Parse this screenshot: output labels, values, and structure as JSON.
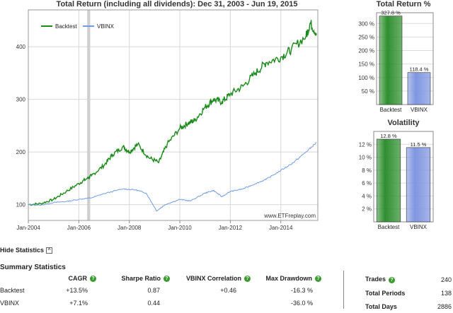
{
  "main_chart": {
    "title": "Total Return (including all dividends): Dec 31, 2003 - Jun 19, 2015",
    "watermark": "www.ETFreplay.com",
    "legend": [
      "Backtest",
      "VBINX"
    ]
  },
  "chart_data": [
    {
      "type": "line",
      "title": "Total Return (including all dividends): Dec 31, 2003 - Jun 19, 2015",
      "xlabel": "",
      "ylabel": "",
      "x_ticks": [
        "Jan-2004",
        "Jan-2006",
        "Jan-2008",
        "Jan-2010",
        "Jan-2012",
        "Jan-2014"
      ],
      "y_ticks": [
        100,
        200,
        300,
        400
      ],
      "xlim": [
        "2003-12-31",
        "2015-06-19"
      ],
      "ylim": [
        70,
        470
      ],
      "grid": true,
      "legend": "top-left",
      "series": [
        {
          "name": "Backtest",
          "color": "#1a8a1a",
          "points": [
            [
              "2004-01",
              100
            ],
            [
              "2004-07",
              102
            ],
            [
              "2005-01",
              110
            ],
            [
              "2005-07",
              125
            ],
            [
              "2006-01",
              140
            ],
            [
              "2006-05",
              150
            ],
            [
              "2006-07",
              155
            ],
            [
              "2007-01",
              175
            ],
            [
              "2007-05",
              195
            ],
            [
              "2007-10",
              210
            ],
            [
              "2008-01",
              200
            ],
            [
              "2008-05",
              215
            ],
            [
              "2008-10",
              190
            ],
            [
              "2009-03",
              180
            ],
            [
              "2009-07",
              215
            ],
            [
              "2010-01",
              245
            ],
            [
              "2010-05",
              255
            ],
            [
              "2010-08",
              260
            ],
            [
              "2011-01",
              285
            ],
            [
              "2011-05",
              300
            ],
            [
              "2011-09",
              295
            ],
            [
              "2012-01",
              310
            ],
            [
              "2012-07",
              325
            ],
            [
              "2013-01",
              350
            ],
            [
              "2013-06",
              370
            ],
            [
              "2014-01",
              380
            ],
            [
              "2014-06",
              395
            ],
            [
              "2015-01",
              420
            ],
            [
              "2015-03",
              445
            ],
            [
              "2015-06",
              425
            ]
          ]
        },
        {
          "name": "VBINX",
          "color": "#6f9de0",
          "points": [
            [
              "2004-01",
              100
            ],
            [
              "2004-07",
              99
            ],
            [
              "2005-01",
              104
            ],
            [
              "2005-07",
              106
            ],
            [
              "2006-01",
              110
            ],
            [
              "2006-07",
              113
            ],
            [
              "2007-01",
              121
            ],
            [
              "2007-10",
              130
            ],
            [
              "2008-04",
              128
            ],
            [
              "2008-09",
              122
            ],
            [
              "2009-02",
              88
            ],
            [
              "2009-06",
              100
            ],
            [
              "2010-01",
              110
            ],
            [
              "2010-06",
              107
            ],
            [
              "2011-01",
              122
            ],
            [
              "2011-05",
              127
            ],
            [
              "2011-09",
              115
            ],
            [
              "2012-01",
              125
            ],
            [
              "2012-07",
              130
            ],
            [
              "2013-01",
              140
            ],
            [
              "2013-06",
              148
            ],
            [
              "2014-01",
              165
            ],
            [
              "2014-07",
              180
            ],
            [
              "2015-01",
              200
            ],
            [
              "2015-06",
              218
            ]
          ]
        }
      ]
    },
    {
      "type": "bar",
      "title": "Total Return %",
      "categories": [
        "Backtest",
        "VBINX"
      ],
      "values": [
        327.8,
        118.4
      ],
      "labels": [
        "327.8 %",
        "118.4 %"
      ],
      "y_ticks": [
        "50 %",
        "100 %",
        "150 %",
        "200 %",
        "250 %",
        "300 %"
      ],
      "ylim": [
        0,
        340
      ],
      "colors": [
        "#2f8f2f",
        "#7f96e0"
      ]
    },
    {
      "type": "bar",
      "title": "Volatility",
      "categories": [
        "Backtest",
        "VBINX"
      ],
      "values": [
        12.8,
        11.5
      ],
      "labels": [
        "12.8 %",
        "11.5 %"
      ],
      "y_ticks": [
        "2 %",
        "4 %",
        "6 %",
        "8 %",
        "10 %",
        "12 %"
      ],
      "ylim": [
        0,
        14
      ],
      "colors": [
        "#2f8f2f",
        "#7f96e0"
      ]
    }
  ],
  "stats": {
    "hide_label": "Hide Statistics",
    "summary_title": "Summary Statistics",
    "headers": [
      "CAGR",
      "Sharpe Ratio",
      "VBINX Correlation",
      "Max Drawdown"
    ],
    "rows": [
      {
        "name": "Backtest",
        "cagr": "+13.5%",
        "sharpe": "0.87",
        "corr": "+0.46",
        "maxdd": "-16.3 %"
      },
      {
        "name": "VBINX",
        "cagr": "+7.1%",
        "sharpe": "0.44",
        "corr": "",
        "maxdd": "-36.0 %"
      }
    ],
    "extra": [
      {
        "label": "Trades",
        "value": "240",
        "help": true
      },
      {
        "label": "Total Periods",
        "value": "138",
        "help": false
      },
      {
        "label": "Total Days",
        "value": "2886",
        "help": false
      }
    ],
    "help_glyph": "?",
    "toggle_glyph": "^"
  }
}
